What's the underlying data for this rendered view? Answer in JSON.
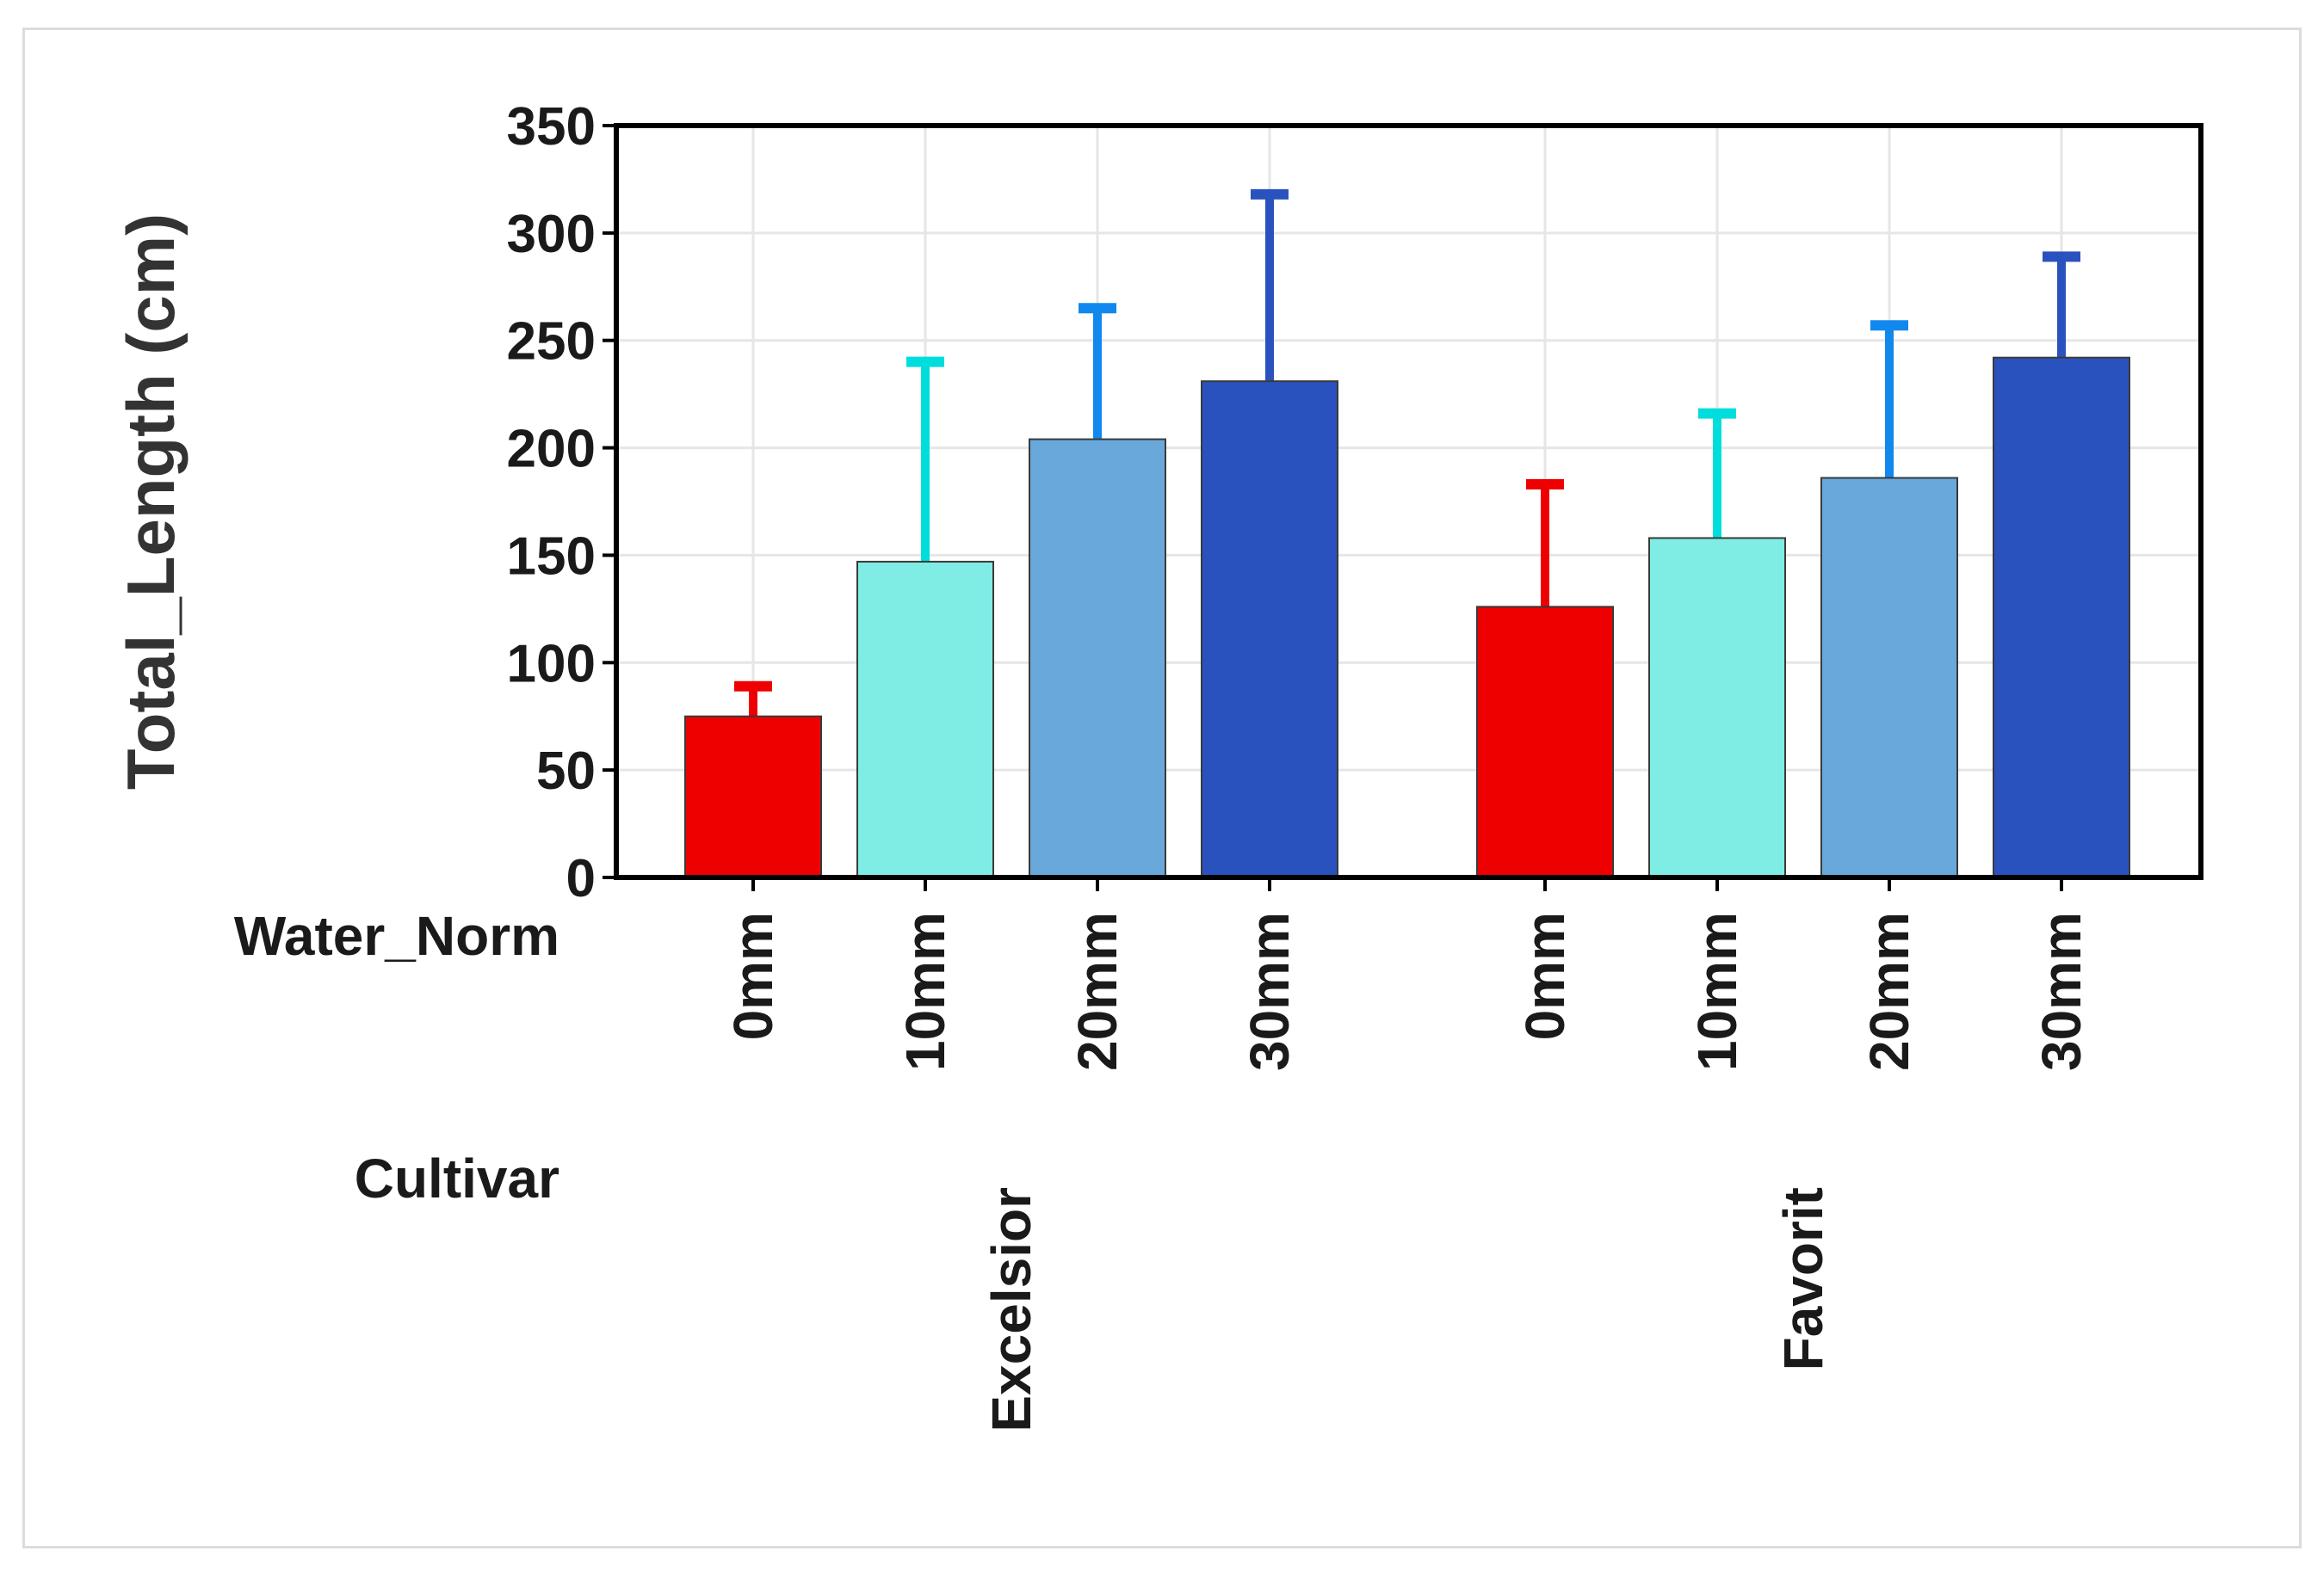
{
  "chart_data": {
    "type": "bar",
    "title": "",
    "ylabel": "Total_Length (cm)",
    "xlabel": "",
    "ylim": [
      0,
      350
    ],
    "yticks": [
      0,
      50,
      100,
      150,
      200,
      250,
      300,
      350
    ],
    "grid": true,
    "x_row_labels": {
      "level1": "Water_Norm",
      "level2": "Cultivar"
    },
    "groups": [
      {
        "name": "Excelsior",
        "bars": [
          {
            "category": "0mm",
            "value": 75,
            "error_upper": 89,
            "color": "#ee0000",
            "error_color": "#ee0000"
          },
          {
            "category": "10mm",
            "value": 147,
            "error_upper": 240,
            "color": "#80ede4",
            "error_color": "#00dddd"
          },
          {
            "category": "20mm",
            "value": 204,
            "error_upper": 265,
            "color": "#68a8da",
            "error_color": "#1188ee"
          },
          {
            "category": "30mm",
            "value": 231,
            "error_upper": 318,
            "color": "#2a52be",
            "error_color": "#2a52be"
          }
        ]
      },
      {
        "name": "Favorit",
        "bars": [
          {
            "category": "0mm",
            "value": 126,
            "error_upper": 183,
            "color": "#ee0000",
            "error_color": "#ee0000"
          },
          {
            "category": "10mm",
            "value": 158,
            "error_upper": 216,
            "color": "#80ede4",
            "error_color": "#00dddd"
          },
          {
            "category": "20mm",
            "value": 186,
            "error_upper": 257,
            "color": "#68a8da",
            "error_color": "#1188ee"
          },
          {
            "category": "30mm",
            "value": 242,
            "error_upper": 289,
            "color": "#2a52be",
            "error_color": "#2a52be"
          }
        ]
      }
    ]
  }
}
